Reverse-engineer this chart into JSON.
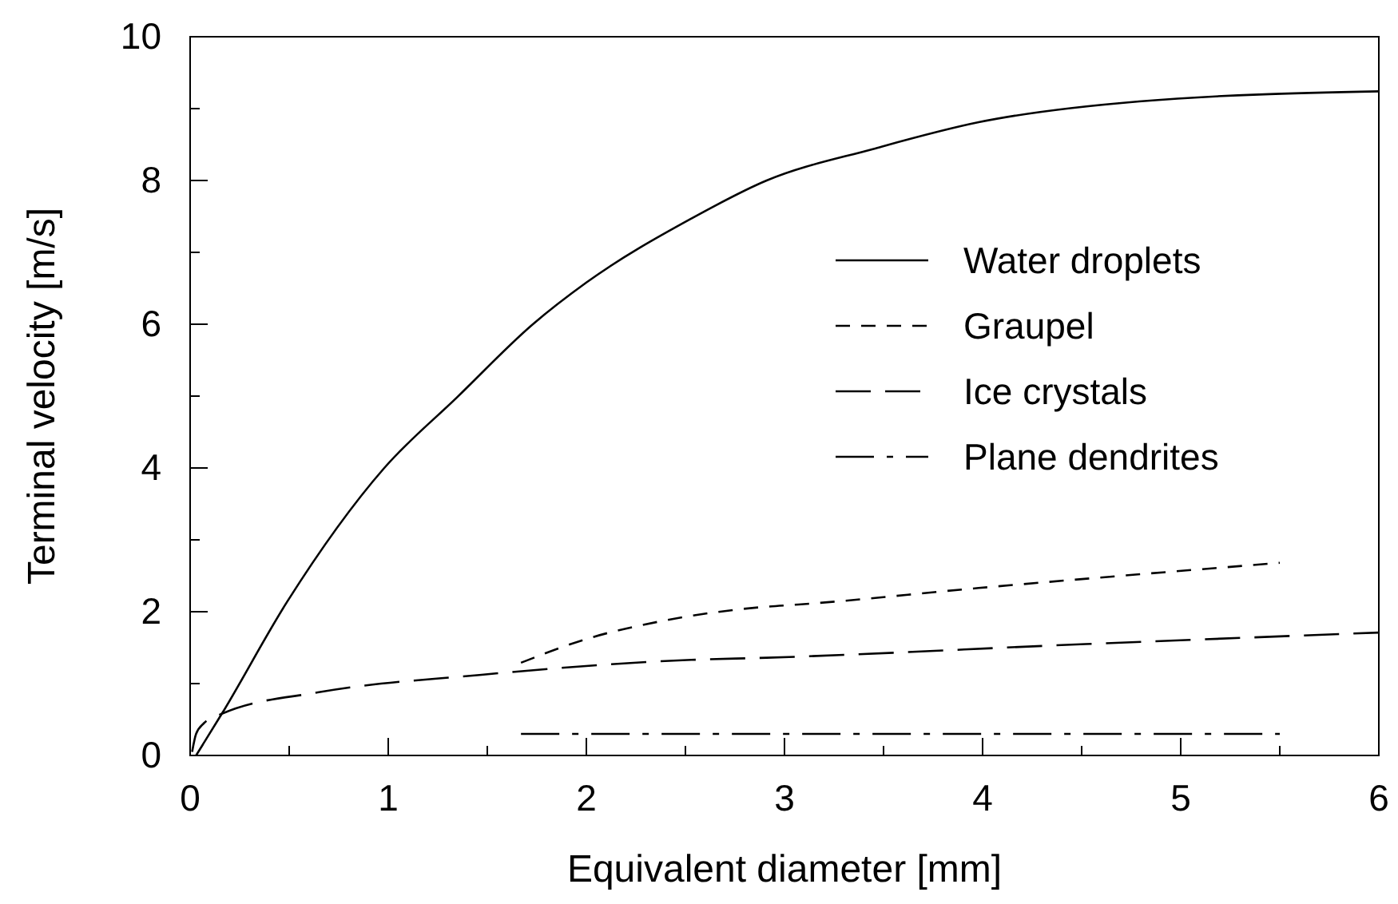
{
  "chart_data": {
    "type": "line",
    "xlabel": "Equivalent diameter [mm]",
    "ylabel": "Terminal velocity [m/s]",
    "xlim": [
      0,
      6
    ],
    "ylim": [
      0,
      10
    ],
    "xticks": [
      0,
      {
        "value": 0.5,
        "label": null
      },
      1,
      {
        "value": 1.5,
        "label": null
      },
      2,
      {
        "value": 2.5,
        "label": null
      },
      3,
      {
        "value": 3.5,
        "label": null
      },
      4,
      {
        "value": 4.5,
        "label": null
      },
      5,
      {
        "value": 5.5,
        "label": null
      },
      6
    ],
    "yticks": [
      0,
      {
        "value": 1,
        "label": null
      },
      2,
      {
        "value": 3,
        "label": null
      },
      4,
      {
        "value": 5,
        "label": null
      },
      6,
      {
        "value": 7,
        "label": null
      },
      8,
      {
        "value": 9,
        "label": null
      },
      10
    ],
    "grid": false,
    "legend": "right",
    "series": [
      {
        "name": "Water droplets",
        "color": "#000000",
        "line_style": "solid",
        "x": [
          0.03,
          0.16,
          0.49,
          0.98,
          1.35,
          1.73,
          2.0,
          2.53,
          2.91,
          3.45,
          3.98,
          4.79,
          6.0
        ],
        "values": [
          0,
          0.58,
          2.14,
          4.0,
          4.99,
          6.0,
          6.58,
          7.47,
          8.0,
          8.44,
          8.81,
          9.1,
          9.24
        ]
      },
      {
        "name": "Graupel",
        "color": "#000000",
        "line_style": "dashed",
        "x": [
          1.67,
          2.0,
          2.4,
          2.91,
          3.07,
          3.98,
          5.5
        ],
        "values": [
          1.29,
          1.62,
          1.88,
          2.07,
          2.1,
          2.33,
          2.68
        ]
      },
      {
        "name": "Ice crystals",
        "color": "#000000",
        "line_style": "longdash",
        "x": [
          0.01,
          0.03,
          0.07,
          0.16,
          0.65,
          1.46,
          1.62,
          2.53,
          2.91,
          4.52,
          6.0
        ],
        "values": [
          0.05,
          0.3,
          0.45,
          0.58,
          0.88,
          1.12,
          1.16,
          1.33,
          1.36,
          1.55,
          1.71
        ]
      },
      {
        "name": "Plane dendrites",
        "color": "#000000",
        "line_style": "dashdot",
        "x": [
          1.67,
          5.5
        ],
        "values": [
          0.3,
          0.3
        ]
      }
    ]
  }
}
